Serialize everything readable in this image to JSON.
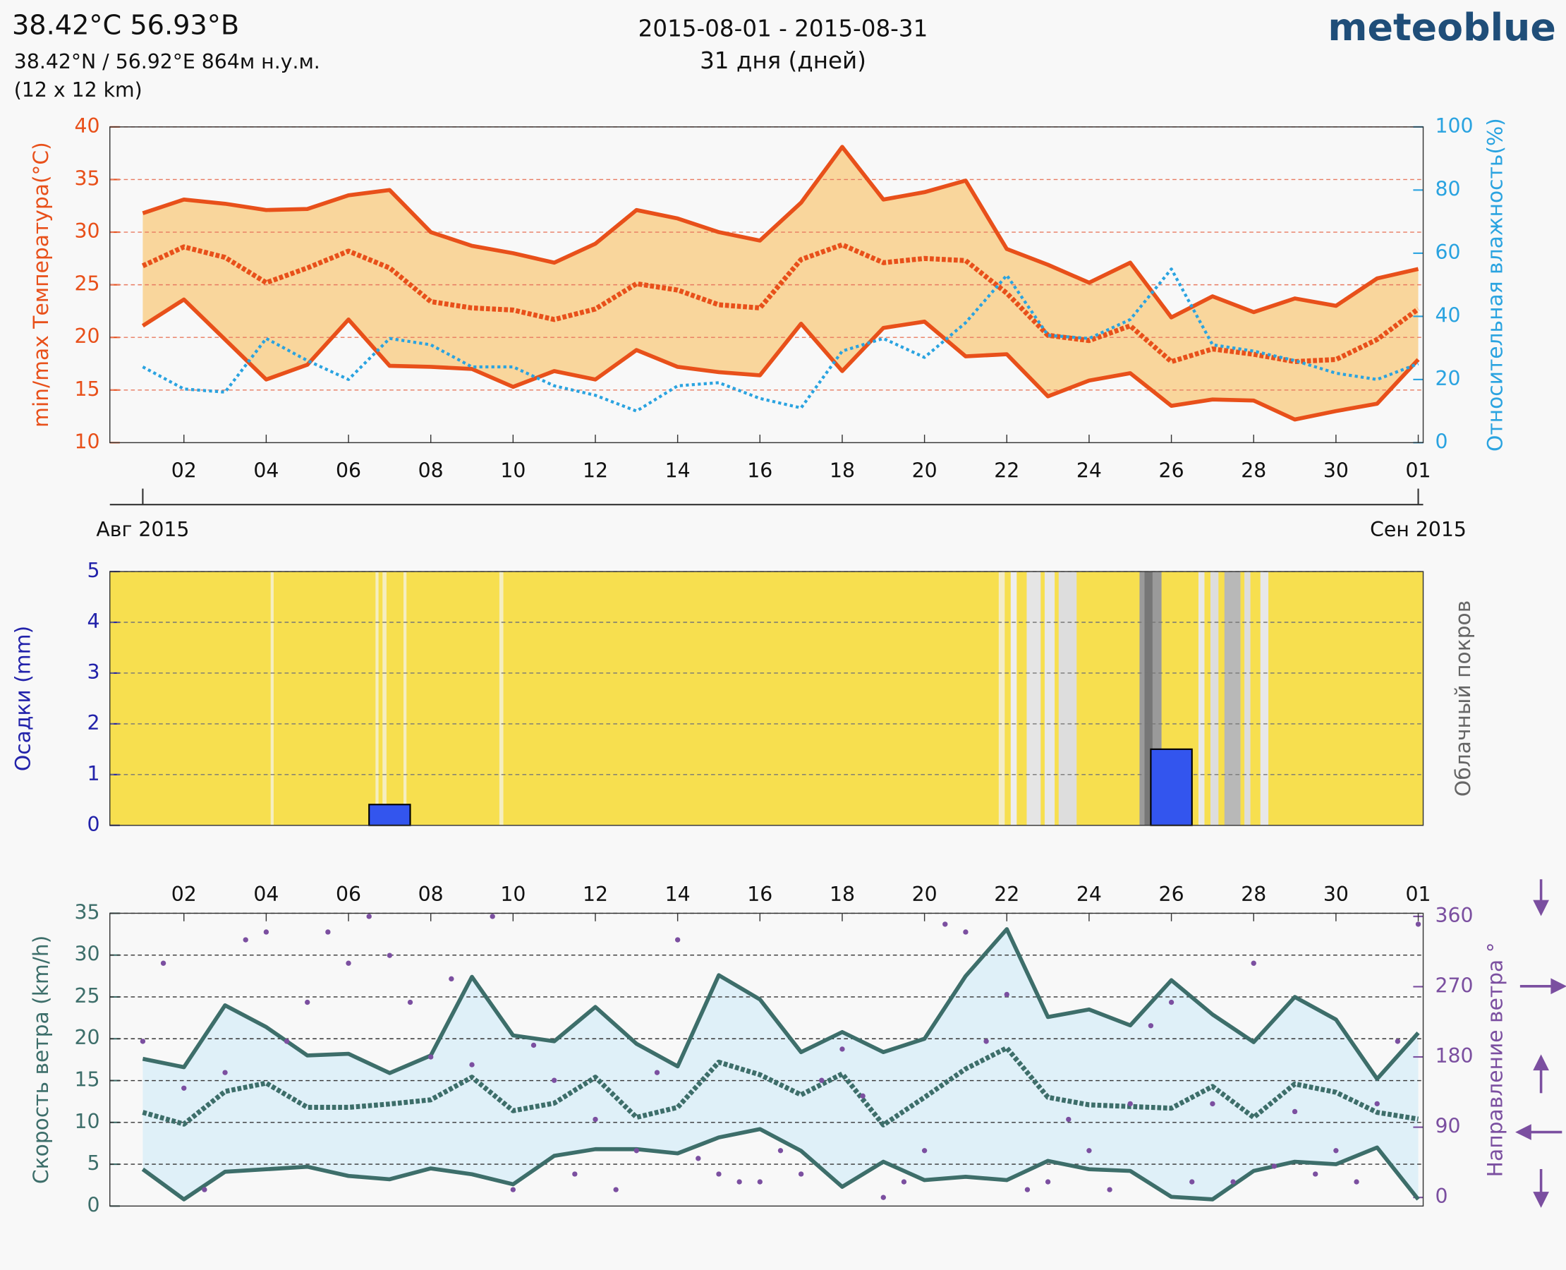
{
  "header": {
    "title": "38.42°C 56.93°B",
    "coords": "38.42°N / 56.92°E   864м н.у.м.",
    "grid": "(12 x 12 km)",
    "period": "2015-08-01 - 2015-08-31",
    "days": "31 дня (дней)",
    "brand": "meteoblue"
  },
  "chart_data": [
    {
      "type": "line",
      "x": [
        1,
        2,
        3,
        4,
        5,
        6,
        7,
        8,
        9,
        10,
        11,
        12,
        13,
        14,
        15,
        16,
        17,
        18,
        19,
        20,
        21,
        22,
        23,
        24,
        25,
        26,
        27,
        28,
        29,
        30,
        31,
        32
      ],
      "xlim": [
        0.2,
        32.12
      ],
      "xticks": [
        {
          "value": 2,
          "label": "02"
        },
        {
          "value": 4,
          "label": "04"
        },
        {
          "value": 6,
          "label": "06"
        },
        {
          "value": 8,
          "label": "08"
        },
        10,
        12,
        14,
        16,
        18,
        20,
        22,
        24,
        26,
        28,
        30,
        {
          "value": 32,
          "label": "01"
        }
      ],
      "xtick_side": "bottom",
      "month_labels": [
        {
          "value": 1,
          "label": "Авг 2015"
        },
        {
          "value": 32,
          "label": "Сен 2015"
        }
      ],
      "ylabel": "min/max Температура(°C)",
      "ylabel_color": "#e8501a",
      "y2label": "Относительная влажность(%)",
      "y2label_color": "#2aa3e0",
      "ylim": [
        10,
        40
      ],
      "yticks": [
        10,
        15,
        20,
        25,
        30,
        35,
        40
      ],
      "y2lim": [
        0,
        100
      ],
      "y2ticks": [
        0,
        20,
        40,
        60,
        80,
        100
      ],
      "grid": true,
      "grid_color": "#e87a60",
      "fill_between": [
        0,
        2
      ],
      "fill_color": "#f9d69c",
      "series": [
        {
          "color": "#e8501a",
          "style": "solid",
          "values": [
            31.8,
            33.1,
            32.7,
            32.1,
            32.2,
            33.5,
            34.0,
            30.0,
            28.7,
            28.0,
            27.1,
            28.9,
            32.1,
            31.3,
            30.0,
            29.2,
            32.8,
            38.1,
            33.1,
            33.8,
            34.9,
            28.4,
            26.9,
            25.2,
            27.1,
            21.9,
            23.9,
            22.4,
            23.7,
            23.0,
            25.6,
            26.5
          ]
        },
        {
          "color": "#e8501a",
          "style": "dotted",
          "values": [
            26.8,
            28.6,
            27.6,
            25.2,
            26.6,
            28.2,
            26.6,
            23.4,
            22.8,
            22.6,
            21.7,
            22.7,
            25.1,
            24.5,
            23.1,
            22.8,
            27.4,
            28.8,
            27.1,
            27.5,
            27.3,
            24.2,
            20.2,
            19.7,
            21.1,
            17.7,
            18.9,
            18.4,
            17.7,
            17.9,
            19.8,
            22.7
          ]
        },
        {
          "color": "#e8501a",
          "style": "solid",
          "values": [
            21.1,
            23.6,
            19.8,
            16.0,
            17.4,
            21.7,
            17.3,
            17.2,
            17.0,
            15.3,
            16.8,
            16.0,
            18.8,
            17.2,
            16.7,
            16.4,
            21.3,
            16.8,
            20.9,
            21.5,
            18.2,
            18.4,
            14.4,
            15.9,
            16.6,
            13.5,
            14.1,
            14.0,
            12.2,
            13.0,
            13.7,
            17.9
          ]
        },
        {
          "color": "#2aa3e0",
          "style": "fine-dotted",
          "axis": "y2",
          "values": [
            24,
            17,
            16,
            33,
            26,
            20,
            33,
            31,
            24,
            24,
            18,
            15,
            10,
            18,
            19,
            14,
            11,
            29,
            33,
            27,
            38,
            53,
            34,
            33,
            39,
            55,
            31,
            29,
            26,
            22,
            20,
            25
          ]
        }
      ]
    },
    {
      "type": "bar",
      "x": [
        1,
        2,
        3,
        4,
        5,
        6,
        7,
        8,
        9,
        10,
        11,
        12,
        13,
        14,
        15,
        16,
        17,
        18,
        19,
        20,
        21,
        22,
        23,
        24,
        25,
        26,
        27,
        28,
        29,
        30,
        31
      ],
      "xlim": [
        0.2,
        32.12
      ],
      "values": [
        0,
        0,
        0,
        0,
        0,
        0,
        0.41,
        0,
        0,
        0,
        0,
        0,
        0,
        0,
        0,
        0,
        0,
        0,
        0,
        0,
        0,
        0,
        0,
        0,
        0,
        1.5,
        0,
        0,
        0,
        0,
        0
      ],
      "color": "#3355ee",
      "ylabel": "Осадки (mm)",
      "ylabel_color": "#2222aa",
      "y2label": "Облачный покров",
      "y2label_color": "#666666",
      "ylim": [
        0,
        5
      ],
      "yticks": [
        0,
        1,
        2,
        3,
        4,
        5
      ],
      "grid": true,
      "grid_color": "#777777"
    },
    {
      "type": "line",
      "x": [
        1,
        2,
        3,
        4,
        5,
        6,
        7,
        8,
        9,
        10,
        11,
        12,
        13,
        14,
        15,
        16,
        17,
        18,
        19,
        20,
        21,
        22,
        23,
        24,
        25,
        26,
        27,
        28,
        29,
        30,
        31,
        32
      ],
      "xlim": [
        0.2,
        32.12
      ],
      "xticks": [
        {
          "value": 2,
          "label": "02"
        },
        {
          "value": 4,
          "label": "04"
        },
        {
          "value": 6,
          "label": "06"
        },
        {
          "value": 8,
          "label": "08"
        },
        10,
        12,
        14,
        16,
        18,
        20,
        22,
        24,
        26,
        28,
        30,
        {
          "value": 32,
          "label": "01"
        }
      ],
      "xtick_side": "top",
      "ylabel": "Скорость ветра (km/h)",
      "ylabel_color": "#3d6e6a",
      "y2label": "Направление ветра °",
      "y2label_color": "#7b4fa0",
      "ylim": [
        0,
        35
      ],
      "yticks": [
        0,
        5,
        10,
        15,
        20,
        25,
        30,
        35
      ],
      "y2lim": [
        -11,
        364
      ],
      "y2ticks": [
        0,
        90,
        180,
        270,
        360
      ],
      "grid": true,
      "grid_color": "#333333",
      "fill_between": [
        0,
        2
      ],
      "fill_color": "#dff0f8",
      "series": [
        {
          "color": "#3d6e6a",
          "style": "solid",
          "values": [
            17.6,
            16.6,
            24.0,
            21.4,
            18.0,
            18.2,
            15.9,
            18.0,
            27.4,
            20.4,
            19.7,
            23.8,
            19.4,
            16.7,
            27.6,
            24.7,
            18.4,
            20.8,
            18.4,
            20.0,
            27.5,
            33.1,
            22.6,
            23.5,
            21.6,
            27.0,
            22.9,
            19.6,
            25.0,
            22.3,
            15.2,
            20.7
          ]
        },
        {
          "color": "#3d6e6a",
          "style": "dotted",
          "values": [
            11.2,
            9.8,
            13.7,
            14.7,
            11.8,
            11.8,
            12.2,
            12.7,
            15.4,
            11.4,
            12.3,
            15.4,
            10.6,
            11.8,
            17.2,
            15.7,
            13.3,
            15.8,
            9.7,
            13.0,
            16.4,
            18.9,
            13.0,
            12.1,
            11.9,
            11.7,
            14.3,
            10.6,
            14.6,
            13.6,
            11.2,
            10.4
          ]
        },
        {
          "color": "#3d6e6a",
          "style": "solid",
          "values": [
            4.4,
            0.8,
            4.1,
            4.4,
            4.7,
            3.6,
            3.2,
            4.5,
            3.8,
            2.6,
            6.0,
            6.8,
            6.8,
            6.3,
            8.2,
            9.2,
            6.6,
            2.3,
            5.3,
            3.1,
            3.5,
            3.1,
            5.4,
            4.4,
            4.2,
            1.1,
            0.8,
            4.2,
            5.3,
            5.0,
            7.0,
            0.8
          ]
        },
        {
          "color": "#7b4fa0",
          "kind": "markers",
          "axis": "y2",
          "x": [
            1,
            1.5,
            2,
            2.5,
            3,
            3.5,
            4,
            4.5,
            5,
            5.5,
            6,
            6.5,
            7,
            7.5,
            8,
            8.5,
            9,
            9.5,
            10,
            10.5,
            11,
            11.5,
            12,
            12.5,
            13,
            13.5,
            14,
            14.5,
            15,
            15.5,
            16,
            16.5,
            17,
            17.5,
            18,
            18.5,
            19,
            19.5,
            20,
            20.5,
            21,
            21.5,
            22,
            22.5,
            23,
            23.5,
            24,
            24.5,
            25,
            25.5,
            26,
            26.5,
            27,
            27.5,
            28,
            28.5,
            29,
            29.5,
            30,
            30.5,
            31,
            31.5,
            32
          ],
          "values": [
            200,
            300,
            140,
            10,
            160,
            330,
            340,
            200,
            250,
            340,
            300,
            360,
            310,
            250,
            180,
            280,
            170,
            360,
            10,
            195,
            150,
            30,
            100,
            10,
            60,
            160,
            330,
            50,
            30,
            20,
            20,
            60,
            30,
            150,
            190,
            130,
            0,
            20,
            60,
            350,
            340,
            200,
            260,
            10,
            20,
            100,
            60,
            10,
            120,
            220,
            250,
            20,
            120,
            20,
            300,
            40,
            110,
            30,
            60,
            20,
            120,
            200,
            350
          ]
        }
      ]
    }
  ]
}
